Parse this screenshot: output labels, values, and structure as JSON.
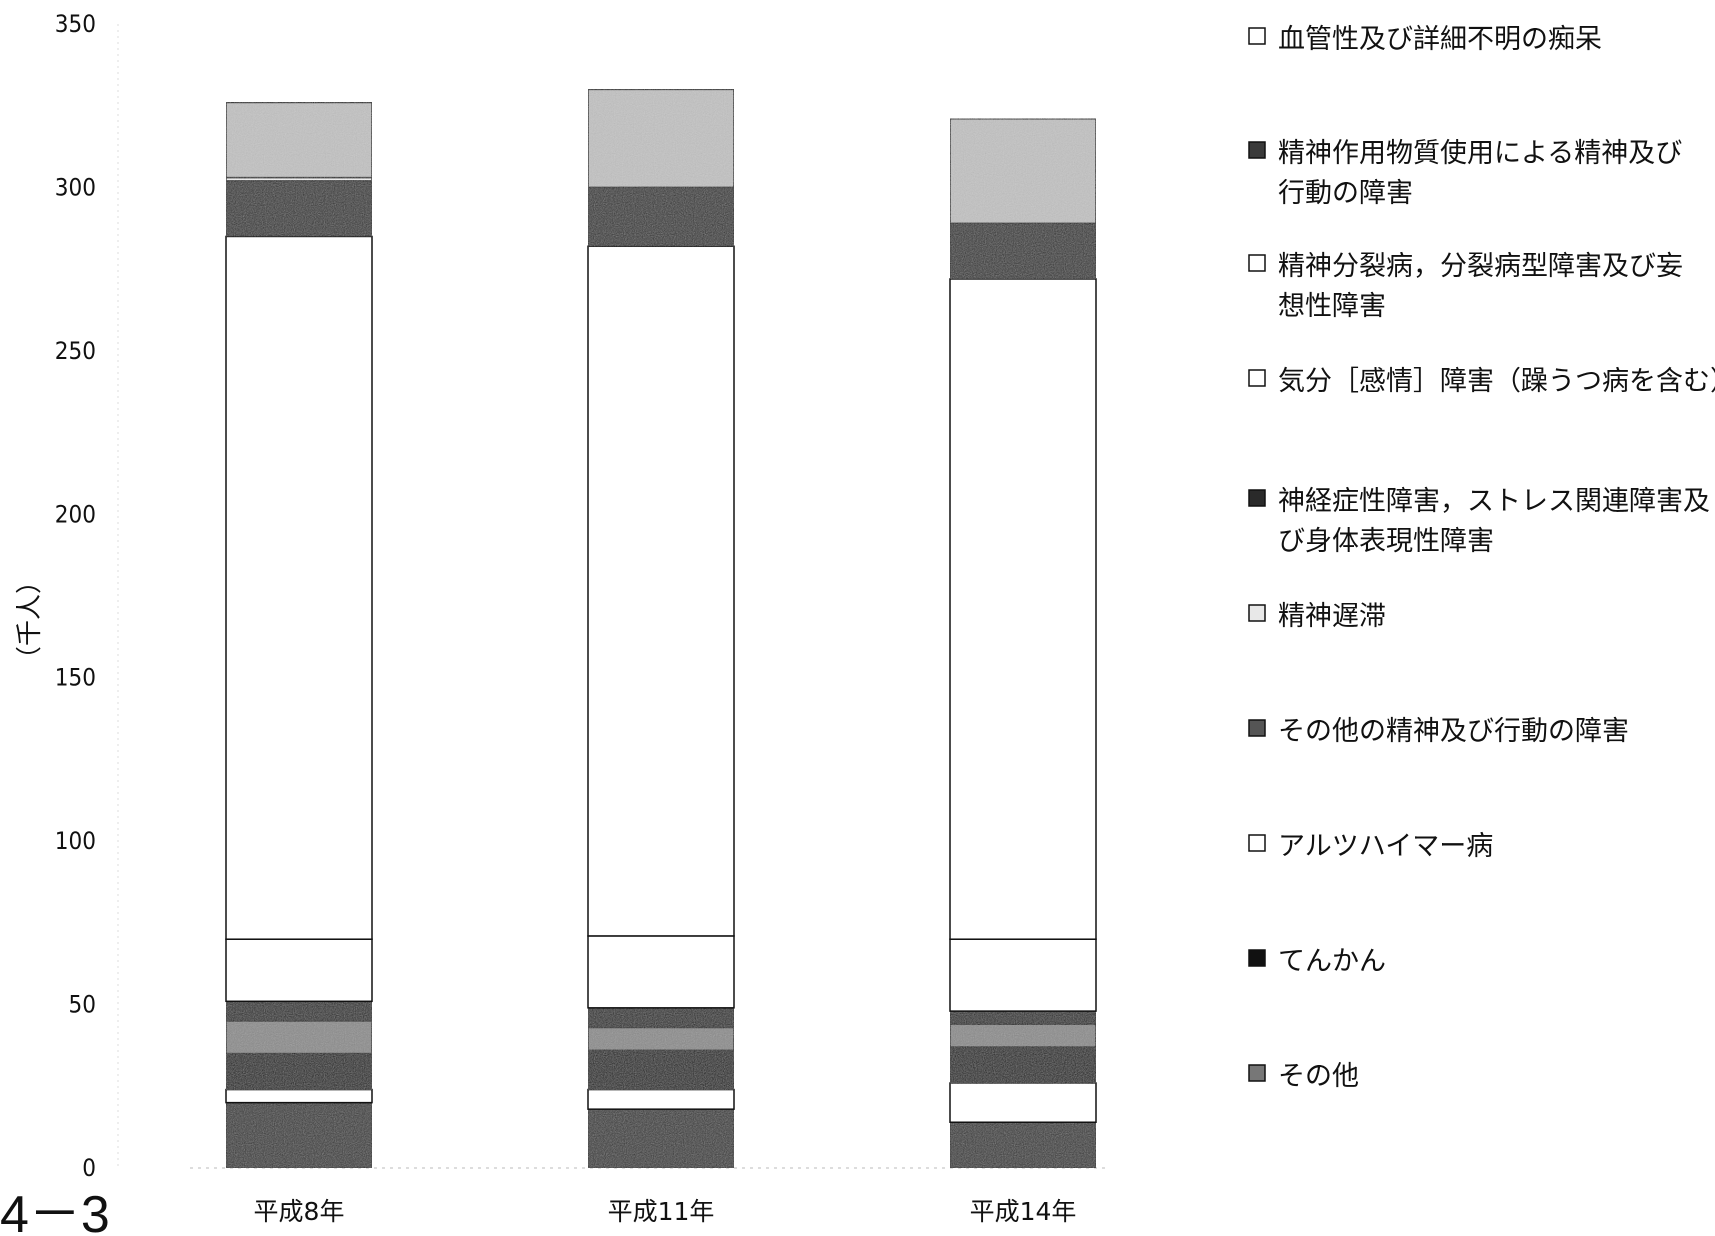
{
  "figure_number": "4－3",
  "chart_data": {
    "type": "bar",
    "stacked": true,
    "title": "",
    "xlabel": "",
    "ylabel": "（千人）",
    "ylim": [
      0,
      350
    ],
    "yticks": [
      0,
      50,
      100,
      150,
      200,
      250,
      300,
      350
    ],
    "categories": [
      "平成8年",
      "平成11年",
      "平成14年"
    ],
    "legend_position": "right",
    "series": [
      {
        "name": "その他",
        "values": [
          20,
          18,
          14
        ],
        "color": "#333333"
      },
      {
        "name": "てんかん",
        "values": [
          4,
          6,
          12
        ],
        "color": "#ffffff"
      },
      {
        "name": "アルツハイマー病",
        "values": [
          11,
          12,
          11
        ],
        "color": "#141414"
      },
      {
        "name": "その他の精神及び行動の障害",
        "values": [
          10,
          7,
          7
        ],
        "color": "#8a8a8a"
      },
      {
        "name": "精神遅滞",
        "values": [
          6,
          6,
          4
        ],
        "color": "#222222"
      },
      {
        "name": "神経症性障害，ストレス関連障害及び身体表現性障害",
        "values": [
          19,
          22,
          22
        ],
        "color": "#ffffff"
      },
      {
        "name": "気分［感情］障害（躁うつ病を含む）",
        "values": [
          215,
          211,
          202
        ],
        "color": "#ffffff"
      },
      {
        "name": "精神分裂病，分裂病型障害及び妄想性障害",
        "values": [
          17,
          18,
          17
        ],
        "color": "#2e2e2e"
      },
      {
        "name": "精神作用物質使用による精神及び行動の障害",
        "values": [
          1,
          0,
          0
        ],
        "color": "#f2f2f2"
      },
      {
        "name": "血管性及び詳細不明の痴呆",
        "values": [
          23,
          30,
          32
        ],
        "color": "#c2c2c2"
      }
    ],
    "legend_entries": [
      {
        "label_lines": [
          "血管性及び詳細不明の痴呆"
        ],
        "swatch": "#ffffff"
      },
      {
        "label_lines": [
          "精神作用物質使用による精神及び",
          "行動の障害"
        ],
        "swatch": "#3a3a3a"
      },
      {
        "label_lines": [
          "精神分裂病，分裂病型障害及び妄",
          "想性障害"
        ],
        "swatch": "#ffffff"
      },
      {
        "label_lines": [
          "気分［感情］障害（躁うつ病を含む）"
        ],
        "swatch": "#ffffff"
      },
      {
        "label_lines": [
          "神経症性障害，ストレス関連障害及",
          "び身体表現性障害"
        ],
        "swatch": "#2a2a2a"
      },
      {
        "label_lines": [
          "精神遅滞"
        ],
        "swatch": "#e8e8e8"
      },
      {
        "label_lines": [
          "その他の精神及び行動の障害"
        ],
        "swatch": "#555555"
      },
      {
        "label_lines": [
          "アルツハイマー病"
        ],
        "swatch": "#ffffff"
      },
      {
        "label_lines": [
          "てんかん"
        ],
        "swatch": "#111111"
      },
      {
        "label_lines": [
          "その他"
        ],
        "swatch": "#777777"
      }
    ]
  }
}
